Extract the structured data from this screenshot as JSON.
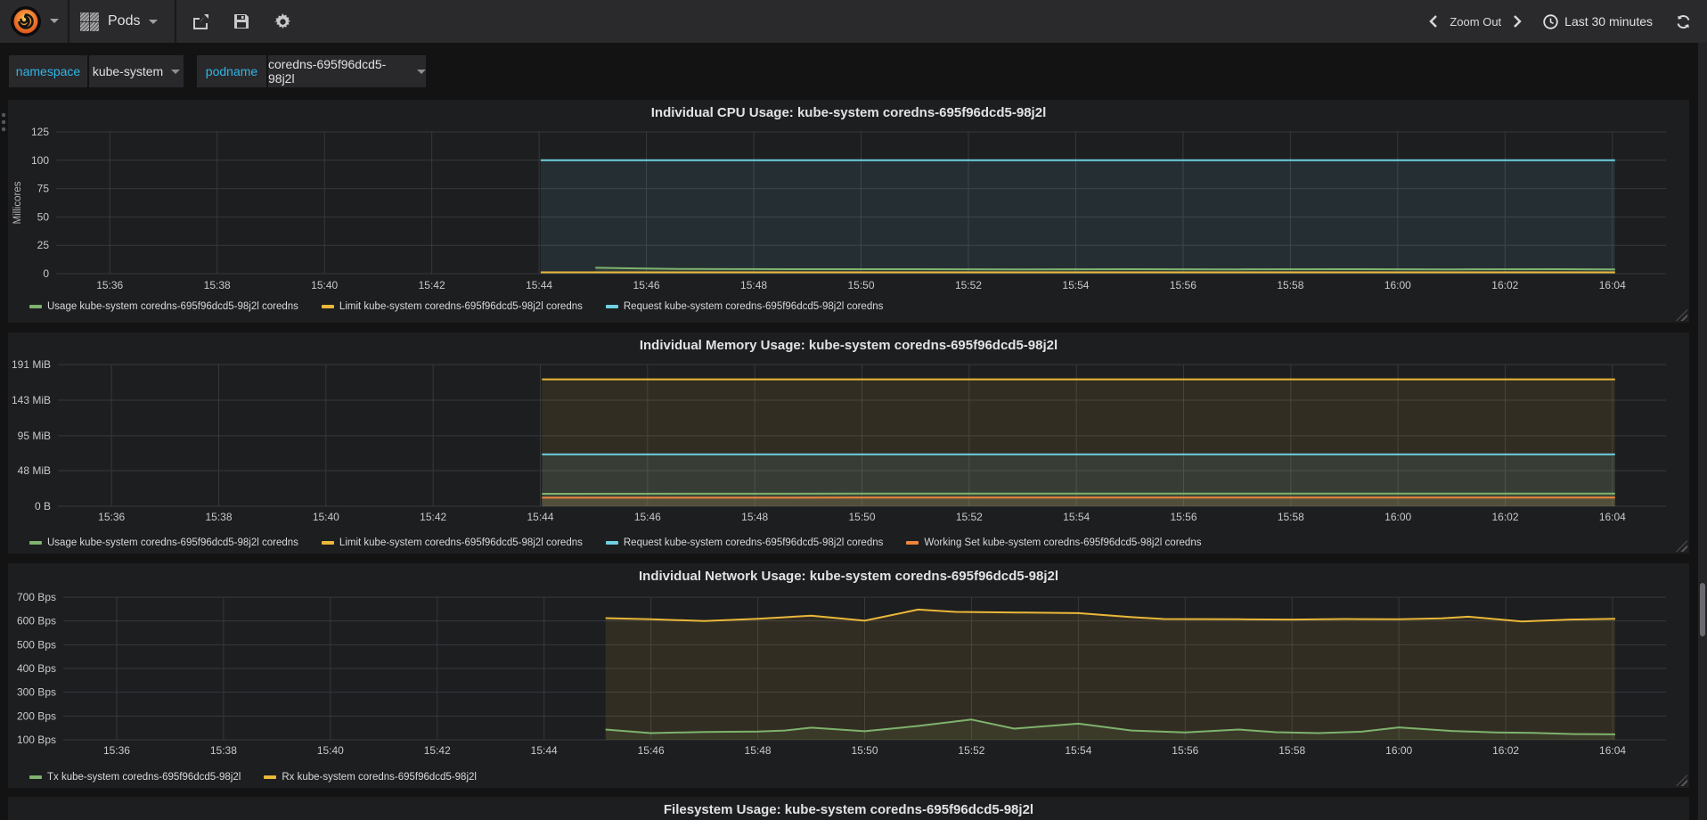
{
  "navbar": {
    "dashboard_title": "Pods",
    "zoom_out_label": "Zoom Out",
    "time_range_label": "Last 30 minutes",
    "icons": [
      "grafana-logo",
      "dashboard-grid-icon",
      "share-icon",
      "save-icon",
      "gear-icon",
      "chevron-left-icon",
      "chevron-right-icon",
      "clock-icon",
      "refresh-icon"
    ]
  },
  "variables": [
    {
      "label": "namespace",
      "value": "kube-system"
    },
    {
      "label": "podname",
      "value": "coredns-695f96dcd5-98j2l"
    }
  ],
  "colors": {
    "green": "#7eb26d",
    "yellow": "#eab839",
    "cyan": "#6ed0e0",
    "orange": "#ef843c",
    "grid": "#36383d",
    "tick_text": "#c9c9cb",
    "panel_bg": "#1d1e20",
    "page_bg": "#131314",
    "variable_label": "#33b5e5"
  },
  "time_axis_note": "x values are minutes after 15:35; visible range 15:35-16:05",
  "chart_data": [
    {
      "type": "line",
      "title": "Individual CPU Usage: kube-system coredns-695f96dcd5-98j2l",
      "ylabel": "Millicores",
      "ylim": [
        0,
        125
      ],
      "yticks": [
        {
          "value": 0,
          "label": "0"
        },
        {
          "value": 25,
          "label": "25"
        },
        {
          "value": 50,
          "label": "50"
        },
        {
          "value": 75,
          "label": "75"
        },
        {
          "value": 100,
          "label": "100"
        },
        {
          "value": 125,
          "label": "125"
        }
      ],
      "xlim": [
        0,
        30
      ],
      "xticks": [
        {
          "t": 1,
          "label": "15:36"
        },
        {
          "t": 3,
          "label": "15:38"
        },
        {
          "t": 5,
          "label": "15:40"
        },
        {
          "t": 7,
          "label": "15:42"
        },
        {
          "t": 9,
          "label": "15:44"
        },
        {
          "t": 11,
          "label": "15:46"
        },
        {
          "t": 13,
          "label": "15:48"
        },
        {
          "t": 15,
          "label": "15:50"
        },
        {
          "t": 17,
          "label": "15:52"
        },
        {
          "t": 19,
          "label": "15:54"
        },
        {
          "t": 21,
          "label": "15:56"
        },
        {
          "t": 23,
          "label": "15:58"
        },
        {
          "t": 25,
          "label": "16:00"
        },
        {
          "t": 27,
          "label": "16:02"
        },
        {
          "t": 29,
          "label": "16:04"
        }
      ],
      "legend_position": "bottom",
      "grid": true,
      "series": [
        {
          "name": "Usage kube-system coredns-695f96dcd5-98j2l coredns",
          "color": "#7eb26d",
          "fill": 0.1,
          "points": [
            [
              10.05,
              5.2
            ],
            [
              10.8,
              4.6
            ],
            [
              11.6,
              4.2
            ],
            [
              12.5,
              4.0
            ],
            [
              14,
              3.9
            ],
            [
              16,
              3.9
            ],
            [
              18,
              3.8
            ],
            [
              20,
              3.9
            ],
            [
              22,
              3.8
            ],
            [
              24,
              3.9
            ],
            [
              26,
              3.8
            ],
            [
              28,
              3.9
            ],
            [
              29.05,
              3.8
            ]
          ]
        },
        {
          "name": "Limit kube-system coredns-695f96dcd5-98j2l coredns",
          "color": "#eab839",
          "fill": 0.1,
          "points": [
            [
              9.03,
              1.2
            ],
            [
              29.05,
              1.2
            ]
          ]
        },
        {
          "name": "Request kube-system coredns-695f96dcd5-98j2l coredns",
          "color": "#6ed0e0",
          "fill": 0.1,
          "points": [
            [
              9.03,
              100
            ],
            [
              29.05,
              100
            ]
          ]
        }
      ]
    },
    {
      "type": "line",
      "title": "Individual Memory Usage: kube-system coredns-695f96dcd5-98j2l",
      "ylabel": "",
      "ylim": [
        0,
        191
      ],
      "yticks": [
        {
          "value": 0,
          "label": "0 B"
        },
        {
          "value": 48,
          "label": "48 MiB"
        },
        {
          "value": 95,
          "label": "95 MiB"
        },
        {
          "value": 143,
          "label": "143 MiB"
        },
        {
          "value": 191,
          "label": "191 MiB"
        }
      ],
      "xlim": [
        0,
        30
      ],
      "xticks": [
        {
          "t": 1,
          "label": "15:36"
        },
        {
          "t": 3,
          "label": "15:38"
        },
        {
          "t": 5,
          "label": "15:40"
        },
        {
          "t": 7,
          "label": "15:42"
        },
        {
          "t": 9,
          "label": "15:44"
        },
        {
          "t": 11,
          "label": "15:46"
        },
        {
          "t": 13,
          "label": "15:48"
        },
        {
          "t": 15,
          "label": "15:50"
        },
        {
          "t": 17,
          "label": "15:52"
        },
        {
          "t": 19,
          "label": "15:54"
        },
        {
          "t": 21,
          "label": "15:56"
        },
        {
          "t": 23,
          "label": "15:58"
        },
        {
          "t": 25,
          "label": "16:00"
        },
        {
          "t": 27,
          "label": "16:02"
        },
        {
          "t": 29,
          "label": "16:04"
        }
      ],
      "legend_position": "bottom",
      "grid": true,
      "series": [
        {
          "name": "Usage kube-system coredns-695f96dcd5-98j2l coredns",
          "color": "#7eb26d",
          "fill": 0.1,
          "points": [
            [
              9.03,
              16.8
            ],
            [
              15,
              17.0
            ],
            [
              22,
              17.1
            ],
            [
              29.05,
              17.2
            ]
          ]
        },
        {
          "name": "Limit kube-system coredns-695f96dcd5-98j2l coredns",
          "color": "#eab839",
          "fill": 0.1,
          "points": [
            [
              9.03,
              171
            ],
            [
              29.05,
              171
            ]
          ]
        },
        {
          "name": "Request kube-system coredns-695f96dcd5-98j2l coredns",
          "color": "#6ed0e0",
          "fill": 0.1,
          "points": [
            [
              9.03,
              70
            ],
            [
              29.05,
              70
            ]
          ]
        },
        {
          "name": "Working Set kube-system coredns-695f96dcd5-98j2l coredns",
          "color": "#ef843c",
          "fill": 0.1,
          "points": [
            [
              9.03,
              11.5
            ],
            [
              15,
              11.6
            ],
            [
              22,
              11.7
            ],
            [
              29.05,
              11.8
            ]
          ]
        }
      ]
    },
    {
      "type": "line",
      "title": "Individual Network Usage: kube-system coredns-695f96dcd5-98j2l",
      "ylabel": "",
      "ylim": [
        100,
        700
      ],
      "yticks": [
        {
          "value": 100,
          "label": "100 Bps"
        },
        {
          "value": 200,
          "label": "200 Bps"
        },
        {
          "value": 300,
          "label": "300 Bps"
        },
        {
          "value": 400,
          "label": "400 Bps"
        },
        {
          "value": 500,
          "label": "500 Bps"
        },
        {
          "value": 600,
          "label": "600 Bps"
        },
        {
          "value": 700,
          "label": "700 Bps"
        }
      ],
      "xlim": [
        0,
        30
      ],
      "xticks": [
        {
          "t": 1,
          "label": "15:36"
        },
        {
          "t": 3,
          "label": "15:38"
        },
        {
          "t": 5,
          "label": "15:40"
        },
        {
          "t": 7,
          "label": "15:42"
        },
        {
          "t": 9,
          "label": "15:44"
        },
        {
          "t": 11,
          "label": "15:46"
        },
        {
          "t": 13,
          "label": "15:48"
        },
        {
          "t": 15,
          "label": "15:50"
        },
        {
          "t": 17,
          "label": "15:52"
        },
        {
          "t": 19,
          "label": "15:54"
        },
        {
          "t": 21,
          "label": "15:56"
        },
        {
          "t": 23,
          "label": "15:58"
        },
        {
          "t": 25,
          "label": "16:00"
        },
        {
          "t": 27,
          "label": "16:02"
        },
        {
          "t": 29,
          "label": "16:04"
        }
      ],
      "legend_position": "bottom",
      "grid": true,
      "series": [
        {
          "name": "Tx kube-system coredns-695f96dcd5-98j2l",
          "color": "#7eb26d",
          "fill": 0.1,
          "points": [
            [
              10.15,
              143
            ],
            [
              11,
              128
            ],
            [
              12,
              133
            ],
            [
              13,
              135
            ],
            [
              13.5,
              139
            ],
            [
              14,
              151
            ],
            [
              15,
              136
            ],
            [
              16,
              158
            ],
            [
              17,
              185
            ],
            [
              17.8,
              147
            ],
            [
              19,
              168
            ],
            [
              20,
              139
            ],
            [
              21,
              131
            ],
            [
              21.5,
              137
            ],
            [
              22,
              143
            ],
            [
              22.7,
              132
            ],
            [
              23.5,
              128
            ],
            [
              24.3,
              134
            ],
            [
              25,
              152
            ],
            [
              26,
              137
            ],
            [
              26.8,
              131
            ],
            [
              27.5,
              129
            ],
            [
              28.3,
              124
            ],
            [
              29.05,
              123
            ]
          ]
        },
        {
          "name": "Rx kube-system coredns-695f96dcd5-98j2l",
          "color": "#eab839",
          "fill": 0.1,
          "points": [
            [
              10.15,
              612
            ],
            [
              11,
              607
            ],
            [
              12,
              600
            ],
            [
              13,
              609
            ],
            [
              14,
              622
            ],
            [
              15,
              601
            ],
            [
              16,
              648
            ],
            [
              16.7,
              638
            ],
            [
              18,
              635
            ],
            [
              19,
              633
            ],
            [
              20,
              616
            ],
            [
              20.6,
              608
            ],
            [
              22,
              607
            ],
            [
              23,
              606
            ],
            [
              24,
              608
            ],
            [
              25,
              607
            ],
            [
              25.8,
              611
            ],
            [
              26.3,
              618
            ],
            [
              27.3,
              598
            ],
            [
              28.2,
              606
            ],
            [
              29.05,
              609
            ]
          ]
        }
      ]
    },
    {
      "type": "line",
      "title": "Filesystem Usage: kube-system coredns-695f96dcd5-98j2l"
    }
  ]
}
